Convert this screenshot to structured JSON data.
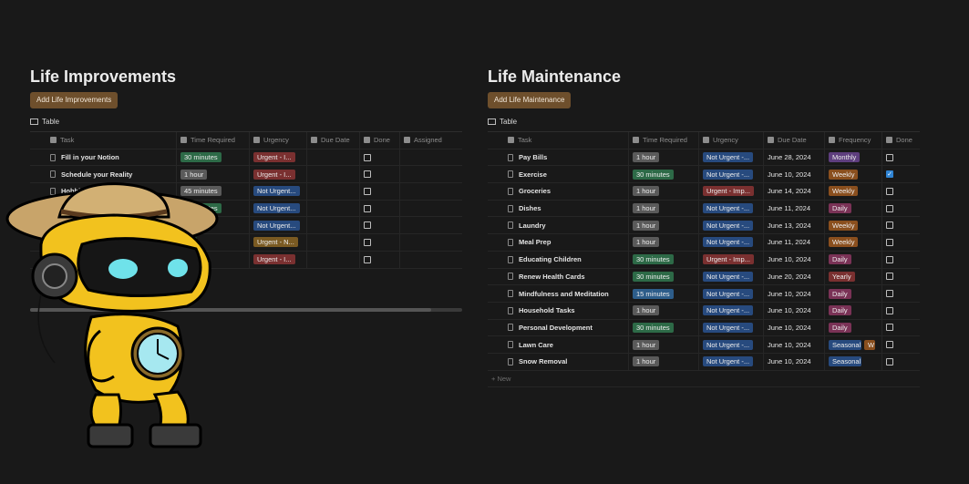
{
  "left": {
    "title": "Life Improvements",
    "add_label": "Add Life Improvements",
    "view_label": "Table",
    "columns": [
      "Task",
      "Time Required",
      "Urgency",
      "Due Date",
      "Done",
      "Assigned"
    ],
    "rows": [
      {
        "task": "Fill in your Notion",
        "time": "30 minutes",
        "urgency": "Urgent - I...",
        "done": false
      },
      {
        "task": "Schedule your Reality",
        "time": "1 hour",
        "urgency": "Urgent - I...",
        "done": false
      },
      {
        "task": "Hobbi",
        "time": "45 minutes",
        "urgency": "Not Urgent...",
        "done": false
      },
      {
        "task": "",
        "time": "30 minutes",
        "urgency": "Not Urgent...",
        "done": false
      },
      {
        "task": "",
        "time": "",
        "urgency": "Not Urgent...",
        "done": false
      },
      {
        "task": "",
        "time": "tes",
        "urgency": "Urgent - N...",
        "done": false
      },
      {
        "task": "",
        "time": "",
        "urgency": "Urgent - I...",
        "done": false
      }
    ]
  },
  "right": {
    "title": "Life Maintenance",
    "add_label": "Add Life Maintenance",
    "view_label": "Table",
    "columns": [
      "Task",
      "Time Required",
      "Urgency",
      "Due Date",
      "Frequency",
      "Done"
    ],
    "new_label": "New",
    "rows": [
      {
        "task": "Pay Bills",
        "time": "1 hour",
        "urgency": "Not Urgent -...",
        "due": "June 28, 2024",
        "freq": "Monthly",
        "done": false
      },
      {
        "task": "Exercise",
        "time": "30 minutes",
        "urgency": "Not Urgent -...",
        "due": "June 10, 2024",
        "freq": "Weekly",
        "done": true
      },
      {
        "task": "Groceries",
        "time": "1 hour",
        "urgency": "Urgent - Imp...",
        "due": "June 14, 2024",
        "freq": "Weekly",
        "done": false
      },
      {
        "task": "Dishes",
        "time": "1 hour",
        "urgency": "Not Urgent -...",
        "due": "June 11, 2024",
        "freq": "Daily",
        "done": false
      },
      {
        "task": "Laundry",
        "time": "1 hour",
        "urgency": "Not Urgent -...",
        "due": "June 13, 2024",
        "freq": "Weekly",
        "done": false
      },
      {
        "task": "Meal Prep",
        "time": "1 hour",
        "urgency": "Not Urgent -...",
        "due": "June 11, 2024",
        "freq": "Weekly",
        "done": false
      },
      {
        "task": "Educating Children",
        "time": "30 minutes",
        "urgency": "Urgent - Imp...",
        "due": "June 10, 2024",
        "freq": "Daily",
        "done": false
      },
      {
        "task": "Renew Health Cards",
        "time": "30 minutes",
        "urgency": "Not Urgent -...",
        "due": "June 20, 2024",
        "freq": "Yearly",
        "done": false
      },
      {
        "task": "Mindfulness and Meditation",
        "time": "15 minutes",
        "urgency": "Not Urgent -...",
        "due": "June 10, 2024",
        "freq": "Daily",
        "done": false
      },
      {
        "task": "Household Tasks",
        "time": "1 hour",
        "urgency": "Not Urgent -...",
        "due": "June 10, 2024",
        "freq": "Daily",
        "done": false
      },
      {
        "task": "Personal Development",
        "time": "30 minutes",
        "urgency": "Not Urgent -...",
        "due": "June 10, 2024",
        "freq": "Daily",
        "done": false
      },
      {
        "task": "Lawn Care",
        "time": "1 hour",
        "urgency": "Not Urgent -...",
        "due": "June 10, 2024",
        "freq": "Seasonal",
        "freq2": "W",
        "done": false
      },
      {
        "task": "Snow Removal",
        "time": "1 hour",
        "urgency": "Not Urgent -...",
        "due": "June 10, 2024",
        "freq": "Seasonal",
        "done": false
      }
    ]
  },
  "colors": {
    "time_30": "#2d6a47",
    "time_1h": "#5a5a5a",
    "time_45": "#5a5a5a",
    "time_15": "#2d5d8a",
    "urgent": "#7a3030",
    "not_urgent": "#274a7e",
    "urgent_n": "#7a5a22",
    "not_urgent_gray": "#555555",
    "monthly": "#5e3e7e",
    "weekly": "#8a4f1e",
    "daily": "#7a3256",
    "yearly": "#7a3030",
    "seasonal": "#274a7e"
  },
  "icons": [
    "table-icon",
    "task-icon",
    "clock-icon",
    "urgency-icon",
    "calendar-icon",
    "checkbox-icon",
    "people-icon",
    "frequency-icon",
    "document-icon",
    "plus-icon"
  ]
}
